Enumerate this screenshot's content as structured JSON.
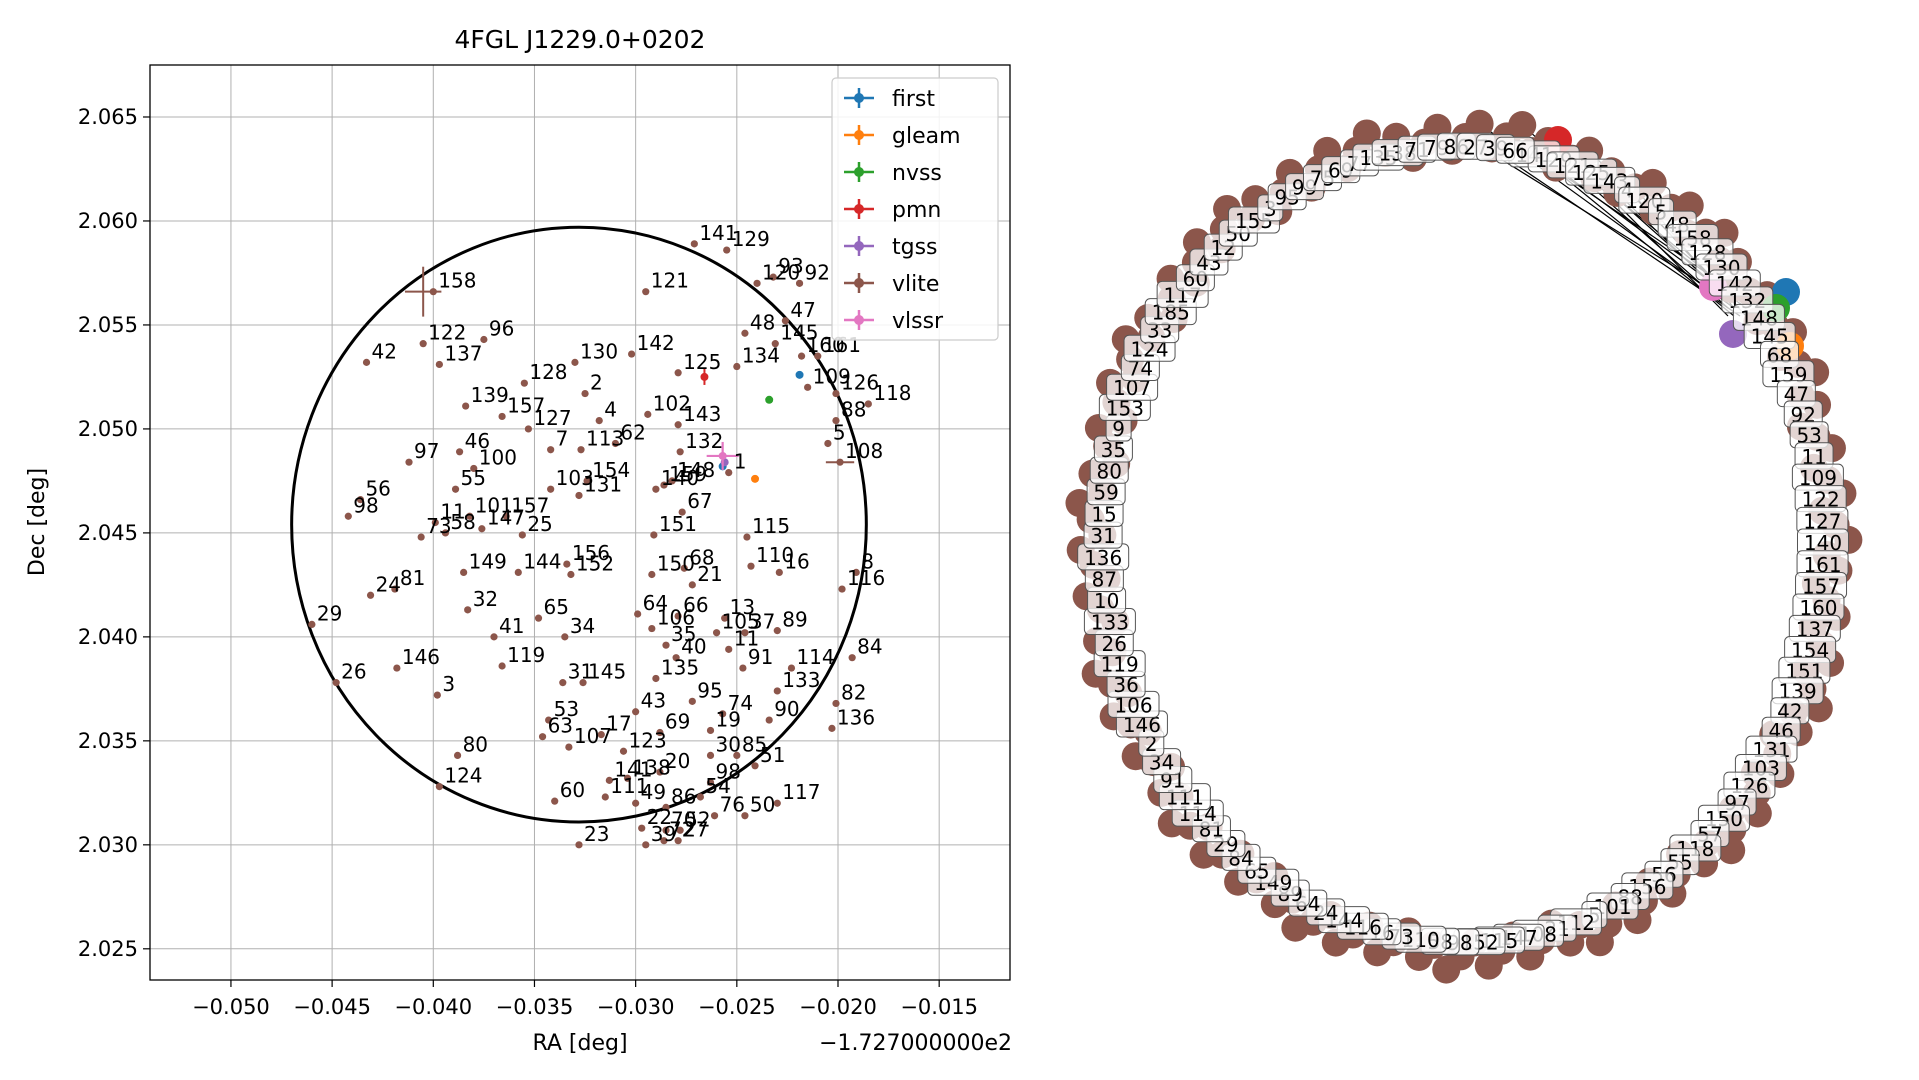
{
  "chart_data": [
    {
      "type": "scatter",
      "title": "4FGL J1229.0+0202",
      "xlabel": "RA [deg]",
      "ylabel": "Dec [deg]",
      "x_offset_label": "−1.727000000e2",
      "xlim": [
        -0.054,
        -0.0115
      ],
      "ylim": [
        2.0235,
        2.0675
      ],
      "x_ticks": [
        -0.05,
        -0.045,
        -0.04,
        -0.035,
        -0.03,
        -0.025,
        -0.02,
        -0.015
      ],
      "x_tick_labels": [
        "−0.050",
        "−0.045",
        "−0.040",
        "−0.035",
        "−0.030",
        "−0.025",
        "−0.020",
        "−0.015"
      ],
      "y_ticks": [
        2.025,
        2.03,
        2.035,
        2.04,
        2.045,
        2.05,
        2.055,
        2.06,
        2.065
      ],
      "y_tick_labels": [
        "2.025",
        "2.030",
        "2.035",
        "2.040",
        "2.045",
        "2.050",
        "2.055",
        "2.060",
        "2.065"
      ],
      "grid": true,
      "legend_position": "top-right",
      "ellipse": {
        "center": [
          -0.0328,
          2.0454
        ],
        "rx": 0.0142,
        "ry": 0.0143
      },
      "series": [
        {
          "name": "first",
          "color": "#1f77b4",
          "points": [
            [
              -0.0257,
              2.0482
            ],
            [
              -0.0219,
              2.0526
            ]
          ]
        },
        {
          "name": "gleam",
          "color": "#ff7f0e",
          "points": [
            [
              -0.0241,
              2.0476
            ]
          ]
        },
        {
          "name": "nvss",
          "color": "#2ca02c",
          "points": [
            [
              -0.0234,
              2.0514
            ]
          ]
        },
        {
          "name": "pmn",
          "color": "#d62728",
          "points": [
            [
              -0.0266,
              2.0525
            ]
          ]
        },
        {
          "name": "tgss",
          "color": "#9467bd",
          "points": [
            [
              -0.0256,
              2.0484
            ]
          ]
        },
        {
          "name": "vlite",
          "color": "#8c564b",
          "points": []
        },
        {
          "name": "vlssr",
          "color": "#e377c2",
          "points": [
            [
              -0.0257,
              2.0487
            ]
          ]
        }
      ],
      "labeled_sources": [
        [
          158,
          -0.04,
          2.0566
        ],
        [
          122,
          -0.0405,
          2.0541
        ],
        [
          42,
          -0.0433,
          2.0532
        ],
        [
          137,
          -0.0397,
          2.0531
        ],
        [
          96,
          -0.0375,
          2.0543
        ],
        [
          128,
          -0.0355,
          2.0522
        ],
        [
          130,
          -0.033,
          2.0532
        ],
        [
          2,
          -0.0325,
          2.0517
        ],
        [
          142,
          -0.0302,
          2.0536
        ],
        [
          121,
          -0.0295,
          2.0566
        ],
        [
          125,
          -0.0279,
          2.0527
        ],
        [
          134,
          -0.025,
          2.053
        ],
        [
          102,
          -0.0294,
          2.0507
        ],
        [
          143,
          -0.0279,
          2.0502
        ],
        [
          4,
          -0.0318,
          2.0504
        ],
        [
          62,
          -0.031,
          2.0493
        ],
        [
          113,
          -0.0327,
          2.049
        ],
        [
          132,
          -0.0278,
          2.0489
        ],
        [
          139,
          -0.0384,
          2.0511
        ],
        [
          157,
          -0.0366,
          2.0506
        ],
        [
          127,
          -0.0353,
          2.05
        ],
        [
          46,
          -0.0387,
          2.0489
        ],
        [
          7,
          -0.0342,
          2.049
        ],
        [
          97,
          -0.0412,
          2.0484
        ],
        [
          100,
          -0.038,
          2.0481
        ],
        [
          154,
          -0.0324,
          2.0475
        ],
        [
          55,
          -0.0389,
          2.0471
        ],
        [
          103,
          -0.0342,
          2.0471
        ],
        [
          131,
          -0.0328,
          2.0468
        ],
        [
          148,
          -0.0282,
          2.0475
        ],
        [
          140,
          -0.029,
          2.0471
        ],
        [
          159,
          -0.0286,
          2.0473
        ],
        [
          1,
          -0.0254,
          2.0479
        ],
        [
          67,
          -0.0277,
          2.046
        ],
        [
          56,
          -0.0436,
          2.0466
        ],
        [
          98,
          -0.0442,
          2.0458
        ],
        [
          101,
          -0.0382,
          2.0458
        ],
        [
          157,
          -0.0364,
          2.0458
        ],
        [
          11,
          -0.0399,
          2.0455
        ],
        [
          73,
          -0.0406,
          2.0448
        ],
        [
          58,
          -0.0394,
          2.045
        ],
        [
          147,
          -0.0376,
          2.0452
        ],
        [
          25,
          -0.0356,
          2.0449
        ],
        [
          151,
          -0.0291,
          2.0449
        ],
        [
          115,
          -0.0245,
          2.0448
        ],
        [
          156,
          -0.0334,
          2.0435
        ],
        [
          149,
          -0.0385,
          2.0431
        ],
        [
          144,
          -0.0358,
          2.0431
        ],
        [
          152,
          -0.0332,
          2.043
        ],
        [
          150,
          -0.0292,
          2.043
        ],
        [
          68,
          -0.0276,
          2.0433
        ],
        [
          110,
          -0.0243,
          2.0434
        ],
        [
          16,
          -0.0229,
          2.0431
        ],
        [
          21,
          -0.0272,
          2.0425
        ],
        [
          24,
          -0.0431,
          2.042
        ],
        [
          81,
          -0.0419,
          2.0423
        ],
        [
          8,
          -0.0191,
          2.0431
        ],
        [
          116,
          -0.0198,
          2.0423
        ],
        [
          32,
          -0.0383,
          2.0413
        ],
        [
          65,
          -0.0348,
          2.0409
        ],
        [
          64,
          -0.0299,
          2.0411
        ],
        [
          66,
          -0.0279,
          2.041
        ],
        [
          13,
          -0.0256,
          2.0409
        ],
        [
          106,
          -0.0292,
          2.0404
        ],
        [
          105,
          -0.026,
          2.0402
        ],
        [
          37,
          -0.0246,
          2.0402
        ],
        [
          89,
          -0.023,
          2.0403
        ],
        [
          29,
          -0.046,
          2.0406
        ],
        [
          41,
          -0.037,
          2.04
        ],
        [
          34,
          -0.0335,
          2.04
        ],
        [
          35,
          -0.0285,
          2.0396
        ],
        [
          40,
          -0.028,
          2.039
        ],
        [
          11,
          -0.0254,
          2.0394
        ],
        [
          84,
          -0.0193,
          2.039
        ],
        [
          146,
          -0.0418,
          2.0385
        ],
        [
          119,
          -0.0366,
          2.0386
        ],
        [
          114,
          -0.0223,
          2.0385
        ],
        [
          26,
          -0.0448,
          2.0378
        ],
        [
          3,
          -0.0398,
          2.0372
        ],
        [
          31,
          -0.0336,
          2.0378
        ],
        [
          145,
          -0.0326,
          2.0378
        ],
        [
          135,
          -0.029,
          2.038
        ],
        [
          91,
          -0.0247,
          2.0385
        ],
        [
          133,
          -0.023,
          2.0374
        ],
        [
          95,
          -0.0272,
          2.0369
        ],
        [
          74,
          -0.0257,
          2.0363
        ],
        [
          82,
          -0.0201,
          2.0368
        ],
        [
          43,
          -0.03,
          2.0364
        ],
        [
          90,
          -0.0234,
          2.036
        ],
        [
          53,
          -0.0343,
          2.036
        ],
        [
          63,
          -0.0346,
          2.0352
        ],
        [
          17,
          -0.0317,
          2.0353
        ],
        [
          69,
          -0.0288,
          2.0354
        ],
        [
          19,
          -0.0263,
          2.0355
        ],
        [
          136,
          -0.0203,
          2.0356
        ],
        [
          107,
          -0.0333,
          2.0347
        ],
        [
          123,
          -0.0306,
          2.0345
        ],
        [
          30,
          -0.0263,
          2.0343
        ],
        [
          85,
          -0.025,
          2.0343
        ],
        [
          51,
          -0.0241,
          2.0338
        ],
        [
          141,
          -0.0313,
          2.0331
        ],
        [
          138,
          -0.0304,
          2.0332
        ],
        [
          20,
          -0.0288,
          2.0335
        ],
        [
          98,
          -0.0263,
          2.033
        ],
        [
          80,
          -0.0388,
          2.0343
        ],
        [
          111,
          -0.0315,
          2.0323
        ],
        [
          49,
          -0.03,
          2.032
        ],
        [
          86,
          -0.0285,
          2.0318
        ],
        [
          54,
          -0.0268,
          2.0323
        ],
        [
          60,
          -0.034,
          2.0321
        ],
        [
          76,
          -0.0261,
          2.0314
        ],
        [
          50,
          -0.0246,
          2.0314
        ],
        [
          117,
          -0.023,
          2.032
        ],
        [
          124,
          -0.0397,
          2.0328
        ],
        [
          22,
          -0.0297,
          2.0308
        ],
        [
          70,
          -0.0285,
          2.0307
        ],
        [
          52,
          -0.0278,
          2.0307
        ],
        [
          23,
          -0.0328,
          2.03
        ],
        [
          39,
          -0.0295,
          2.03
        ],
        [
          72,
          -0.0286,
          2.0302
        ],
        [
          27,
          -0.0279,
          2.0302
        ],
        [
          108,
          -0.0199,
          2.0484
        ],
        [
          88,
          -0.0201,
          2.0504
        ],
        [
          5,
          -0.0205,
          2.0493
        ],
        [
          126,
          -0.0201,
          2.0517
        ],
        [
          118,
          -0.0185,
          2.0512
        ],
        [
          109,
          -0.0215,
          2.052
        ],
        [
          160,
          -0.0218,
          2.0535
        ],
        [
          161,
          -0.021,
          2.0535
        ],
        [
          145,
          -0.0231,
          2.0541
        ],
        [
          48,
          -0.0246,
          2.0546
        ],
        [
          47,
          -0.0226,
          2.0552
        ],
        [
          92,
          -0.0219,
          2.057
        ],
        [
          93,
          -0.0232,
          2.0573
        ],
        [
          120,
          -0.024,
          2.057
        ],
        [
          141,
          -0.0271,
          2.0589
        ],
        [
          129,
          -0.0255,
          2.0586
        ]
      ]
    },
    {
      "type": "network",
      "title": "",
      "highlighted_nodes": [
        {
          "id": "first",
          "color": "#1f77b4"
        },
        {
          "id": "gleam",
          "color": "#ff7f0e"
        },
        {
          "id": "nvss",
          "color": "#2ca02c"
        },
        {
          "id": "pmn",
          "color": "#d62728"
        },
        {
          "id": "tgss",
          "color": "#9467bd"
        },
        {
          "id": "vlssr",
          "color": "#e377c2"
        }
      ],
      "node_color": "#8c564b",
      "node_labels": [
        "141",
        "129",
        "121",
        "125",
        "143",
        "4",
        "120",
        "5",
        "48",
        "158",
        "128",
        "130",
        "142",
        "132",
        "148",
        "145",
        "68",
        "159",
        "47",
        "92",
        "53",
        "11",
        "109",
        "122",
        "127",
        "140",
        "161",
        "157",
        "160",
        "137",
        "154",
        "151",
        "139",
        "42",
        "46",
        "131",
        "103",
        "126",
        "97",
        "150",
        "57",
        "118",
        "55",
        "56",
        "156",
        "88",
        "101",
        "5",
        "112",
        "21",
        "108",
        "147",
        "115",
        "152",
        "98",
        "58",
        "110",
        "73",
        "16",
        "116",
        "144",
        "24",
        "64",
        "89",
        "149",
        "65",
        "84",
        "29",
        "81",
        "114",
        "111",
        "91",
        "34",
        "2",
        "146",
        "106",
        "36",
        "119",
        "26",
        "133",
        "10",
        "87",
        "136",
        "31",
        "15",
        "59",
        "80",
        "35",
        "9",
        "153",
        "107",
        "74",
        "124",
        "33",
        "185",
        "117",
        "60",
        "43",
        "12",
        "50",
        "155",
        "3",
        "95",
        "99",
        "75",
        "69",
        "77",
        "135",
        "138",
        "71",
        "79",
        "86",
        "27",
        "39",
        "66"
      ]
    }
  ]
}
